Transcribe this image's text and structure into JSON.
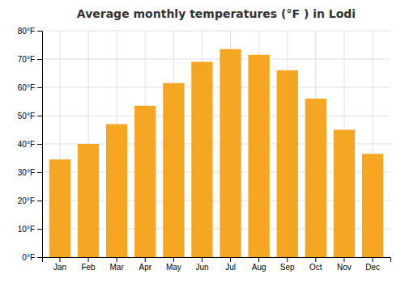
{
  "chart_data": {
    "type": "bar",
    "title": "Average monthly temperatures (°F ) in Lodi",
    "categories": [
      "Jan",
      "Feb",
      "Mar",
      "Apr",
      "May",
      "Jun",
      "Jul",
      "Aug",
      "Sep",
      "Oct",
      "Nov",
      "Dec"
    ],
    "values": [
      34.5,
      40.0,
      47.0,
      53.5,
      61.5,
      69.0,
      73.5,
      71.5,
      66.0,
      56.0,
      45.0,
      36.5
    ],
    "color": "#F5A623",
    "ylim": [
      0,
      80
    ],
    "yticks": [
      {
        "value": 0,
        "label": "0°F"
      },
      {
        "value": 10,
        "label": "10°F"
      },
      {
        "value": 20,
        "label": "20°F"
      },
      {
        "value": 30,
        "label": "30°F"
      },
      {
        "value": 40,
        "label": "40°F"
      },
      {
        "value": 50,
        "label": "50°F"
      },
      {
        "value": 60,
        "label": "60°F"
      },
      {
        "value": 70,
        "label": "70°F"
      },
      {
        "value": 80,
        "label": "80°F"
      }
    ],
    "grid": true
  }
}
